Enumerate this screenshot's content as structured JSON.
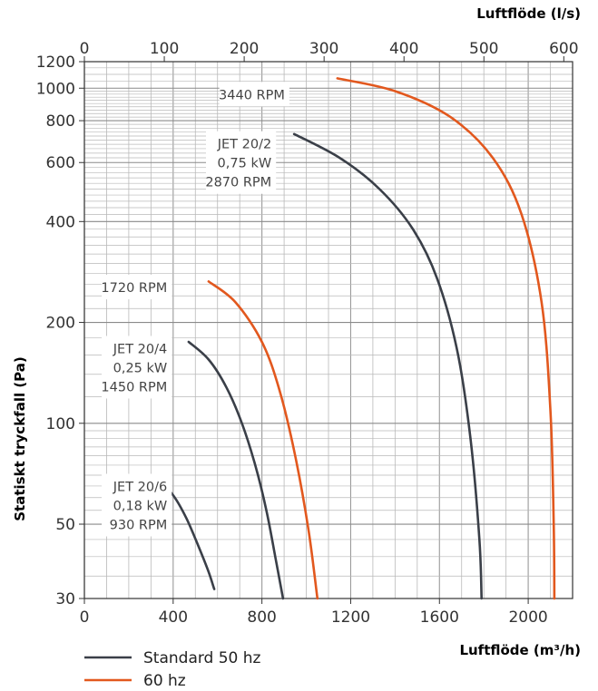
{
  "colors": {
    "standard": "#3a3f48",
    "hz60": "#e2581e",
    "grid": "#b9b9b9",
    "axis": "#333333"
  },
  "chart_data": {
    "type": "line",
    "x_scale": "linear",
    "y_scale": "log",
    "grid": true,
    "xlabel_bottom": "Luftflöde (m³/h)",
    "xlabel_top": "Luftflöde (l/s)",
    "ylabel": "Statiskt tryckfall (Pa)",
    "xlim": [
      0,
      2200
    ],
    "xlim_top": [
      0,
      611
    ],
    "ylim": [
      30,
      1200
    ],
    "x_ticks": [
      "0",
      "400",
      "800",
      "1200",
      "1600",
      "2000"
    ],
    "x_top_ticks": [
      "0",
      "100",
      "200",
      "300",
      "400",
      "500",
      "600"
    ],
    "y_ticks": [
      "30",
      "50",
      "100",
      "200",
      "400",
      "600",
      "800",
      "1000",
      "1200"
    ],
    "legend_position": "bottom-left",
    "series": [
      {
        "name": "Standard 50 hz",
        "group": "standard",
        "x": [
          315,
          400,
          460,
          520,
          560,
          585
        ],
        "y": [
          70,
          61,
          52,
          42,
          36,
          32
        ]
      },
      {
        "name": "Standard 50 hz",
        "group": "standard",
        "x": [
          470,
          560,
          640,
          710,
          770,
          820,
          860,
          895
        ],
        "y": [
          175,
          155,
          128,
          100,
          75,
          55,
          40,
          30
        ]
      },
      {
        "name": "Standard 50 hz",
        "group": "standard",
        "x": [
          945,
          1150,
          1330,
          1480,
          1590,
          1680,
          1740,
          1780,
          1790
        ],
        "y": [
          730,
          620,
          500,
          380,
          270,
          165,
          90,
          45,
          30
        ]
      },
      {
        "name": "60 hz",
        "group": "hz60",
        "x": [
          560,
          680,
          800,
          880,
          950,
          1010,
          1050
        ],
        "y": [
          265,
          230,
          175,
          125,
          80,
          48,
          30
        ]
      },
      {
        "name": "60 hz",
        "group": "hz60",
        "x": [
          1140,
          1400,
          1650,
          1840,
          1970,
          2060,
          2100,
          2115,
          2118
        ],
        "y": [
          1070,
          980,
          820,
          620,
          420,
          230,
          110,
          50,
          30
        ]
      }
    ],
    "annotations": [
      {
        "lines": [
          "3440 RPM"
        ],
        "x": 940,
        "y": 960
      },
      {
        "lines": [
          "JET 20/2",
          "0,75 kW",
          "2870 RPM"
        ],
        "x": 880,
        "y": 600
      },
      {
        "lines": [
          "1720 RPM"
        ],
        "x": 410,
        "y": 255
      },
      {
        "lines": [
          "JET 20/4",
          "0,25 kW",
          "1450 RPM"
        ],
        "x": 410,
        "y": 147
      },
      {
        "lines": [
          "JET 20/6",
          "0,18 kW",
          "930 RPM"
        ],
        "x": 410,
        "y": 57
      }
    ],
    "legend": [
      {
        "label": "Standard 50 hz",
        "group": "standard"
      },
      {
        "label": "60 hz",
        "group": "hz60"
      }
    ]
  }
}
